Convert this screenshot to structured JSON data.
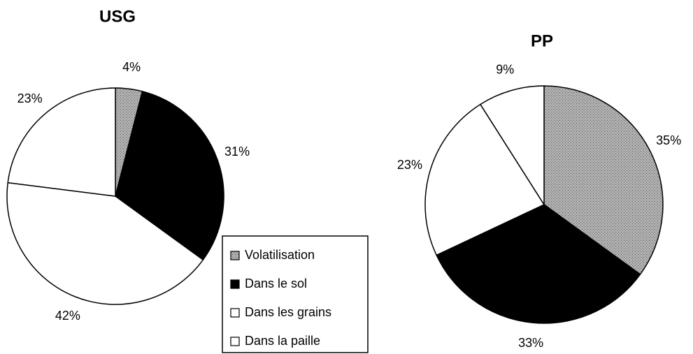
{
  "chart_data": [
    {
      "type": "pie",
      "title": "USG",
      "values": [
        4,
        31,
        42,
        23
      ],
      "value_labels": [
        "4%",
        "31%",
        "42%",
        "23%"
      ],
      "colors": [
        "#a0a0a0",
        "#000000",
        "#ffffff",
        "#ffffff"
      ]
    },
    {
      "type": "pie",
      "title": "PP",
      "values": [
        35,
        33,
        23,
        9
      ],
      "value_labels": [
        "35%",
        "33%",
        "23%",
        "9%"
      ],
      "colors": [
        "#a0a0a0",
        "#000000",
        "#ffffff",
        "#ffffff"
      ]
    }
  ],
  "legend": {
    "labels": [
      "Volatilisation",
      "Dans le sol",
      "Dans les grains",
      "Dans la paille"
    ],
    "colors": [
      "#a0a0a0",
      "#000000",
      "#ffffff",
      "#ffffff"
    ]
  }
}
